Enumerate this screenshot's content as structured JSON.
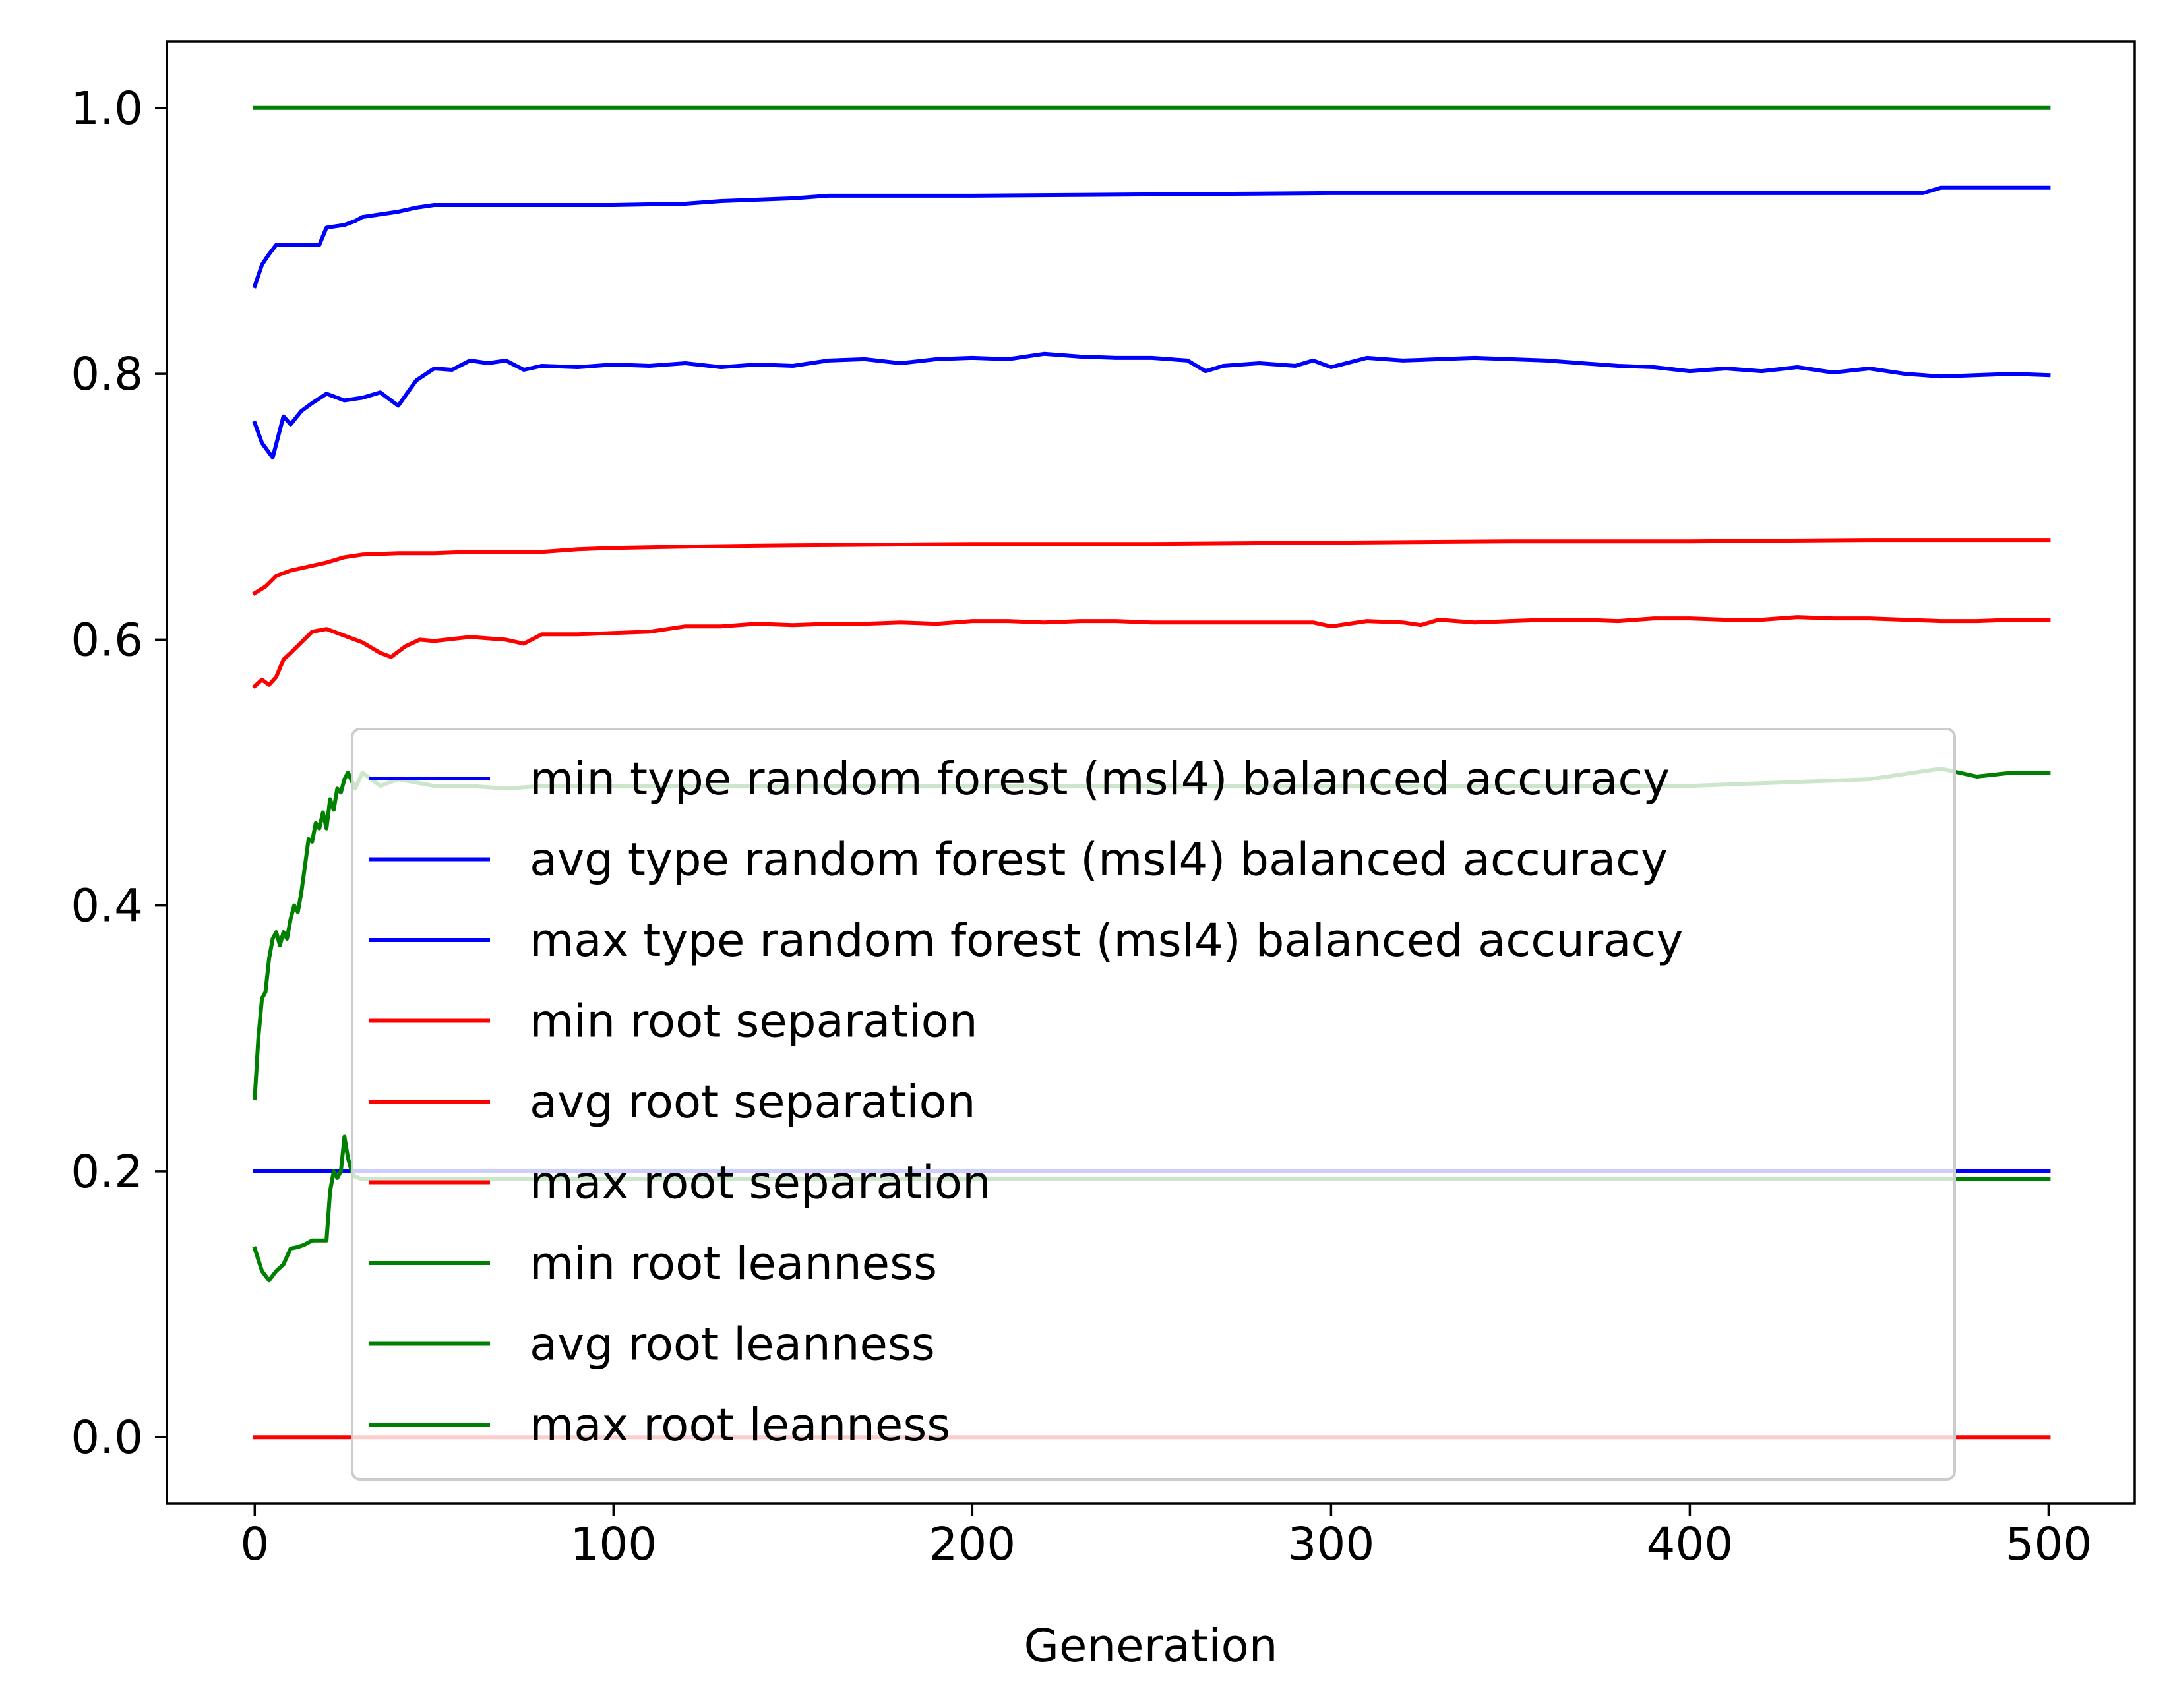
{
  "chart_data": {
    "type": "line",
    "title": "",
    "xlabel": "Generation",
    "ylabel": "",
    "xlim": [
      -24.5,
      524
    ],
    "ylim": [
      -0.05,
      1.05
    ],
    "x_ticks": [
      0,
      100,
      200,
      300,
      400,
      500
    ],
    "x_tick_labels": [
      "0",
      "100",
      "200",
      "300",
      "400",
      "500"
    ],
    "y_ticks": [
      0.0,
      0.2,
      0.4,
      0.6,
      0.8,
      1.0
    ],
    "y_tick_labels": [
      "0.0",
      "0.2",
      "0.4",
      "0.6",
      "0.8",
      "1.0"
    ],
    "grid": false,
    "legend_position": "center (overlapping plot)",
    "series": [
      {
        "name": "min type random forest (msl4) balanced accuracy",
        "color": "#0000ff",
        "x": [
          0,
          500
        ],
        "y": [
          0.2,
          0.2
        ]
      },
      {
        "name": "avg type random forest (msl4) balanced accuracy",
        "color": "#0000ff",
        "x": [
          0,
          2,
          5,
          8,
          10,
          13,
          16,
          20,
          25,
          30,
          35,
          40,
          45,
          50,
          55,
          60,
          65,
          70,
          75,
          80,
          90,
          100,
          110,
          120,
          130,
          140,
          150,
          160,
          170,
          180,
          190,
          200,
          210,
          220,
          230,
          240,
          250,
          260,
          265,
          270,
          280,
          290,
          295,
          300,
          310,
          320,
          330,
          340,
          350,
          360,
          370,
          380,
          390,
          400,
          410,
          420,
          430,
          440,
          450,
          460,
          470,
          480,
          490,
          500
        ],
        "y": [
          0.763,
          0.748,
          0.737,
          0.768,
          0.762,
          0.772,
          0.778,
          0.785,
          0.78,
          0.782,
          0.786,
          0.776,
          0.795,
          0.804,
          0.803,
          0.81,
          0.808,
          0.81,
          0.803,
          0.806,
          0.805,
          0.807,
          0.806,
          0.808,
          0.805,
          0.807,
          0.806,
          0.81,
          0.811,
          0.808,
          0.811,
          0.812,
          0.811,
          0.815,
          0.813,
          0.812,
          0.812,
          0.81,
          0.802,
          0.806,
          0.808,
          0.806,
          0.81,
          0.805,
          0.812,
          0.81,
          0.811,
          0.812,
          0.811,
          0.81,
          0.808,
          0.806,
          0.805,
          0.802,
          0.804,
          0.802,
          0.805,
          0.801,
          0.804,
          0.8,
          0.798,
          0.799,
          0.8,
          0.799
        ]
      },
      {
        "name": "max type random forest (msl4) balanced accuracy",
        "color": "#0000ff",
        "x": [
          0,
          2,
          4,
          6,
          18,
          20,
          25,
          28,
          30,
          35,
          40,
          45,
          50,
          60,
          80,
          100,
          120,
          130,
          150,
          160,
          200,
          250,
          300,
          350,
          400,
          450,
          465,
          470,
          500
        ],
        "y": [
          0.866,
          0.882,
          0.89,
          0.897,
          0.897,
          0.91,
          0.912,
          0.915,
          0.918,
          0.92,
          0.922,
          0.925,
          0.927,
          0.927,
          0.927,
          0.927,
          0.928,
          0.93,
          0.932,
          0.934,
          0.934,
          0.935,
          0.936,
          0.936,
          0.936,
          0.936,
          0.936,
          0.94,
          0.94
        ]
      },
      {
        "name": "min root separation",
        "color": "#ff0000",
        "x": [
          0,
          500
        ],
        "y": [
          0.0,
          0.0
        ]
      },
      {
        "name": "avg root separation",
        "color": "#ff0000",
        "x": [
          0,
          2,
          4,
          6,
          8,
          10,
          13,
          16,
          20,
          25,
          30,
          35,
          38,
          42,
          46,
          50,
          60,
          70,
          75,
          80,
          90,
          100,
          110,
          120,
          130,
          140,
          150,
          160,
          170,
          180,
          190,
          200,
          210,
          220,
          230,
          240,
          250,
          260,
          270,
          280,
          290,
          295,
          300,
          310,
          320,
          325,
          330,
          340,
          350,
          360,
          370,
          380,
          390,
          400,
          410,
          420,
          430,
          440,
          450,
          460,
          470,
          480,
          490,
          500
        ],
        "y": [
          0.565,
          0.57,
          0.566,
          0.572,
          0.585,
          0.59,
          0.598,
          0.606,
          0.608,
          0.603,
          0.598,
          0.59,
          0.587,
          0.595,
          0.6,
          0.599,
          0.602,
          0.6,
          0.597,
          0.604,
          0.604,
          0.605,
          0.606,
          0.61,
          0.61,
          0.612,
          0.611,
          0.612,
          0.612,
          0.613,
          0.612,
          0.614,
          0.614,
          0.613,
          0.614,
          0.614,
          0.613,
          0.613,
          0.613,
          0.613,
          0.613,
          0.613,
          0.61,
          0.614,
          0.613,
          0.611,
          0.615,
          0.613,
          0.614,
          0.615,
          0.615,
          0.614,
          0.616,
          0.616,
          0.615,
          0.615,
          0.617,
          0.616,
          0.616,
          0.615,
          0.614,
          0.614,
          0.615,
          0.615
        ]
      },
      {
        "name": "max root separation",
        "color": "#ff0000",
        "x": [
          0,
          3,
          6,
          10,
          15,
          20,
          25,
          30,
          40,
          50,
          60,
          70,
          80,
          90,
          100,
          120,
          150,
          200,
          250,
          300,
          350,
          400,
          450,
          500
        ],
        "y": [
          0.635,
          0.64,
          0.648,
          0.652,
          0.655,
          0.658,
          0.662,
          0.664,
          0.665,
          0.665,
          0.666,
          0.666,
          0.666,
          0.668,
          0.669,
          0.67,
          0.671,
          0.672,
          0.672,
          0.673,
          0.674,
          0.674,
          0.675,
          0.675
        ]
      },
      {
        "name": "min root leanness",
        "color": "#008000",
        "x": [
          0,
          2,
          4,
          6,
          8,
          10,
          12,
          14,
          16,
          18,
          20,
          21,
          22,
          23,
          24,
          25,
          26,
          27,
          28,
          30,
          40,
          50,
          60,
          70,
          80,
          90,
          100,
          120,
          130,
          140,
          150,
          160,
          170,
          180,
          190,
          200,
          220,
          230,
          250,
          300,
          350,
          400,
          450,
          500
        ],
        "y": [
          0.142,
          0.125,
          0.118,
          0.125,
          0.13,
          0.142,
          0.143,
          0.145,
          0.148,
          0.148,
          0.148,
          0.185,
          0.2,
          0.195,
          0.2,
          0.226,
          0.21,
          0.2,
          0.196,
          0.194,
          0.194,
          0.194,
          0.194,
          0.194,
          0.194,
          0.194,
          0.194,
          0.194,
          0.194,
          0.194,
          0.194,
          0.194,
          0.194,
          0.194,
          0.194,
          0.194,
          0.194,
          0.194,
          0.194,
          0.194,
          0.194,
          0.194,
          0.194,
          0.194
        ]
      },
      {
        "name": "avg root leanness",
        "color": "#008000",
        "x": [
          0,
          1,
          2,
          3,
          4,
          5,
          6,
          7,
          8,
          9,
          10,
          11,
          12,
          13,
          14,
          15,
          16,
          17,
          18,
          19,
          20,
          21,
          22,
          23,
          24,
          25,
          26,
          28,
          30,
          35,
          40,
          50,
          60,
          70,
          80,
          100,
          150,
          200,
          250,
          300,
          350,
          400,
          450,
          470,
          480,
          490,
          500
        ],
        "y": [
          0.255,
          0.3,
          0.33,
          0.335,
          0.36,
          0.375,
          0.38,
          0.37,
          0.38,
          0.375,
          0.39,
          0.4,
          0.395,
          0.41,
          0.43,
          0.45,
          0.448,
          0.462,
          0.458,
          0.47,
          0.458,
          0.48,
          0.472,
          0.488,
          0.485,
          0.495,
          0.5,
          0.488,
          0.5,
          0.49,
          0.495,
          0.49,
          0.49,
          0.488,
          0.49,
          0.49,
          0.49,
          0.49,
          0.49,
          0.49,
          0.49,
          0.49,
          0.495,
          0.503,
          0.497,
          0.5,
          0.5
        ]
      },
      {
        "name": "max root leanness",
        "color": "#008000",
        "x": [
          0,
          500
        ],
        "y": [
          1.0,
          1.0
        ]
      }
    ]
  }
}
